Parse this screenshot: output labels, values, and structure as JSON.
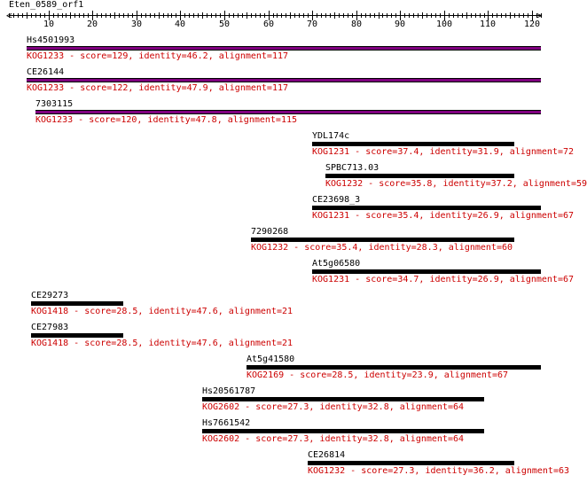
{
  "query_name": "Eten_0589_orf1",
  "ruler": {
    "min": 1,
    "max": 122,
    "tick_labels": [
      "10",
      "20",
      "30",
      "40",
      "50",
      "60",
      "70",
      "80",
      "90",
      "100",
      "110",
      "120"
    ]
  },
  "colors": {
    "bar_default": "#000000",
    "bar_highlight": "#800080",
    "info_text": "#cc0000"
  },
  "hits": [
    {
      "name": "Hs4501993",
      "info": "KOG1233 - score=129, identity=46.2, alignment=117",
      "start": 5,
      "end": 122,
      "bar": "purple"
    },
    {
      "name": "CE26144",
      "info": "KOG1233 - score=122, identity=47.9, alignment=117",
      "start": 5,
      "end": 122,
      "bar": "purple"
    },
    {
      "name": "7303115",
      "info": "KOG1233 - score=120, identity=47.8, alignment=115",
      "start": 7,
      "end": 122,
      "bar": "purple"
    },
    {
      "name": "YDL174c",
      "info": "KOG1231 - score=37.4, identity=31.9, alignment=72",
      "start": 70,
      "end": 116,
      "bar": "black"
    },
    {
      "name": "SPBC713.03",
      "info": "KOG1232 - score=35.8, identity=37.2, alignment=59",
      "start": 73,
      "end": 116,
      "bar": "black"
    },
    {
      "name": "CE23698_3",
      "info": "KOG1231 - score=35.4, identity=26.9, alignment=67",
      "start": 70,
      "end": 122,
      "bar": "black"
    },
    {
      "name": "7290268",
      "info": "KOG1232 - score=35.4, identity=28.3, alignment=60",
      "start": 56,
      "end": 116,
      "bar": "black"
    },
    {
      "name": "At5g06580",
      "info": "KOG1231 - score=34.7, identity=26.9, alignment=67",
      "start": 70,
      "end": 122,
      "bar": "black"
    },
    {
      "name": "CE29273",
      "info": "KOG1418 - score=28.5, identity=47.6, alignment=21",
      "start": 6,
      "end": 27,
      "bar": "black"
    },
    {
      "name": "CE27983",
      "info": "KOG1418 - score=28.5, identity=47.6, alignment=21",
      "start": 6,
      "end": 27,
      "bar": "black"
    },
    {
      "name": "At5g41580",
      "info": "KOG2169 - score=28.5, identity=23.9, alignment=67",
      "start": 55,
      "end": 122,
      "bar": "black"
    },
    {
      "name": "Hs20561787",
      "info": "KOG2602 - score=27.3, identity=32.8, alignment=64",
      "start": 45,
      "end": 109,
      "bar": "black"
    },
    {
      "name": "Hs7661542",
      "info": "KOG2602 - score=27.3, identity=32.8, alignment=64",
      "start": 45,
      "end": 109,
      "bar": "black"
    },
    {
      "name": "CE26814",
      "info": "KOG1232 - score=27.3, identity=36.2, alignment=63",
      "start": 69,
      "end": 116,
      "bar": "black"
    }
  ]
}
